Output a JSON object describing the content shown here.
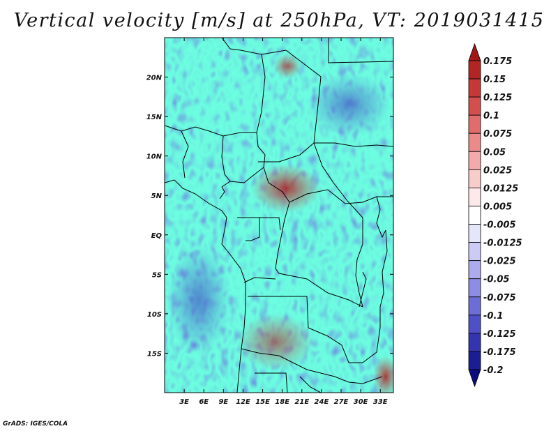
{
  "title": "Vertical velocity [m/s] at 250hPa, VT: 2019031415",
  "credit": "GrADS: IGES/COLA",
  "map": {
    "field": "vertical velocity",
    "level": "250hPa",
    "valid_time": "2019031415",
    "lon_range": [
      0,
      35
    ],
    "lat_range": [
      -20,
      25
    ],
    "lat_labels": [
      {
        "text": "20N",
        "value": 20
      },
      {
        "text": "15N",
        "value": 15
      },
      {
        "text": "10N",
        "value": 10
      },
      {
        "text": "5N",
        "value": 5
      },
      {
        "text": "EQ",
        "value": 0
      },
      {
        "text": "5S",
        "value": -5
      },
      {
        "text": "10S",
        "value": -10
      },
      {
        "text": "15S",
        "value": -15
      }
    ],
    "lon_labels": [
      {
        "text": "3E",
        "value": 3
      },
      {
        "text": "6E",
        "value": 6
      },
      {
        "text": "9E",
        "value": 9
      },
      {
        "text": "12E",
        "value": 12
      },
      {
        "text": "15E",
        "value": 15
      },
      {
        "text": "18E",
        "value": 18
      },
      {
        "text": "21E",
        "value": 21
      },
      {
        "text": "24E",
        "value": 24
      },
      {
        "text": "27E",
        "value": 27
      },
      {
        "text": "30E",
        "value": 30
      },
      {
        "text": "33E",
        "value": 33
      }
    ],
    "notable_features": [
      {
        "name": "strong ascent",
        "lon": 19.5,
        "lat": 5
      },
      {
        "name": "strong ascent",
        "lon": 34,
        "lat": -17
      },
      {
        "name": "ascent cluster",
        "lon": 17,
        "lat": -14
      },
      {
        "name": "wave pattern",
        "lon": 19,
        "lat": 22
      }
    ]
  },
  "colorbar": {
    "levels": [
      "0.175",
      "0.15",
      "0.125",
      "0.1",
      "0.075",
      "0.05",
      "0.025",
      "0.0125",
      "0.005",
      "-0.005",
      "-0.0125",
      "-0.025",
      "-0.05",
      "-0.075",
      "-0.1",
      "-0.125",
      "-0.175",
      "-0.2"
    ],
    "colors": [
      "#a01818",
      "#b32424",
      "#c63838",
      "#d54e4e",
      "#e26c6c",
      "#ec8a8a",
      "#f4aaaa",
      "#f9cccc",
      "#fde9e9",
      "#ffffff",
      "#e6e6fb",
      "#cbcbf6",
      "#ababee",
      "#8d8de6",
      "#6d6dd8",
      "#4f4fc8",
      "#3434b0",
      "#1c1c95",
      "#0c0c80"
    ]
  }
}
